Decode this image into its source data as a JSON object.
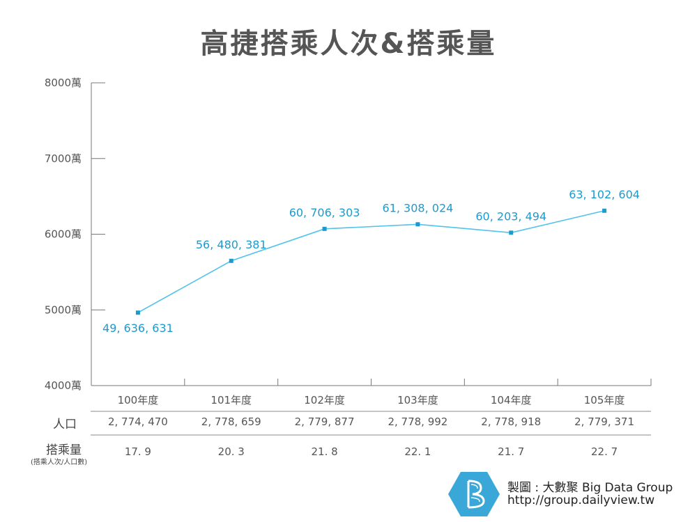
{
  "title": "高捷搭乘人次&搭乘量",
  "chart_data": {
    "type": "line",
    "categories": [
      "100年度",
      "101年度",
      "102年度",
      "103年度",
      "104年度",
      "105年度"
    ],
    "values": [
      49636631,
      56480381,
      60706303,
      61308024,
      60203494,
      63102604
    ],
    "data_labels": [
      "49, 636, 631",
      "56, 480, 381",
      "60, 706, 303",
      "61, 308, 024",
      "60, 203, 494",
      "63, 102, 604"
    ],
    "ylim": [
      40000000,
      80000000
    ],
    "y_ticks": [
      {
        "value": 80000000,
        "label": "8000萬"
      },
      {
        "value": 70000000,
        "label": "7000萬"
      },
      {
        "value": 60000000,
        "label": "6000萬"
      },
      {
        "value": 50000000,
        "label": "5000萬"
      },
      {
        "value": 40000000,
        "label": "4000萬"
      }
    ],
    "line_color": "#4fc3ec",
    "marker_color": "#1a9bd0",
    "grid": false
  },
  "table": {
    "population_label": "人口",
    "population": [
      "2, 774, 470",
      "2, 778, 659",
      "2, 779, 877",
      "2, 778, 992",
      "2, 778, 918",
      "2, 779, 371"
    ],
    "ridership_label": "搭乘量",
    "ridership_sublabel": "(搭乘人次/人口數)",
    "ridership": [
      "17. 9",
      "20. 3",
      "21. 8",
      "22. 1",
      "21. 7",
      "22. 7"
    ]
  },
  "footer": {
    "credit": "製圖 : 大數聚 Big Data Group",
    "url": "http://group.dailyview.tw",
    "logo_color": "#3aa7d9"
  }
}
